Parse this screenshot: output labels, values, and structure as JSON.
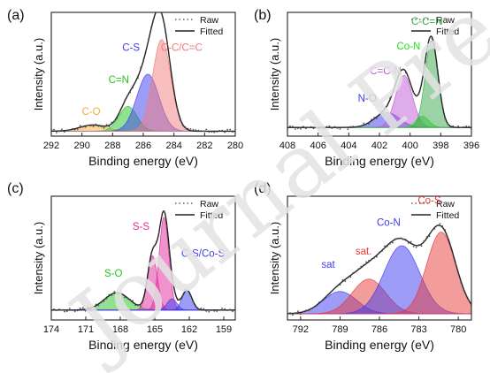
{
  "watermark": "Journal Pre-proof",
  "chart_data": [
    {
      "type": "area",
      "panel": "(a)",
      "xlabel": "Binding energy (eV)",
      "ylabel": "Intensity (a.u.)",
      "xlim": [
        292,
        280
      ],
      "x_reversed": true,
      "xticks": [
        292,
        290,
        288,
        286,
        284,
        282,
        280
      ],
      "y_ticks_shown": false,
      "legend": {
        "position": "top-right",
        "entries": [
          "Raw",
          "Fitted"
        ]
      },
      "series": [
        {
          "name": "C-O",
          "type": "gaussian",
          "center": 289.3,
          "height": 0.05,
          "fwhm": 2.0,
          "color": "#f4a93a"
        },
        {
          "name": "C=N",
          "type": "gaussian",
          "center": 287.0,
          "height": 0.2,
          "fwhm": 1.4,
          "color": "#22c522"
        },
        {
          "name": "C-S",
          "type": "gaussian",
          "center": 285.7,
          "height": 0.46,
          "fwhm": 1.7,
          "color": "#3b3bf0"
        },
        {
          "name": "C-C/C=C",
          "type": "gaussian",
          "center": 284.8,
          "height": 0.74,
          "fwhm": 1.4,
          "color": "#f27b7b"
        }
      ],
      "baseline": 0.04,
      "annotations": [
        {
          "text": "C-O",
          "x": 289.4,
          "y": 0.17
        },
        {
          "text": "C=N",
          "x": 287.6,
          "y": 0.43
        },
        {
          "text": "C-S",
          "x": 286.8,
          "y": 0.69
        },
        {
          "text": "C-C/C=C",
          "x": 283.5,
          "y": 0.69
        }
      ]
    },
    {
      "type": "area",
      "panel": "(b)",
      "xlabel": "Binding energy (eV)",
      "ylabel": "Intensity (a.u.)",
      "xlim": [
        408,
        396
      ],
      "x_reversed": true,
      "xticks": [
        408,
        406,
        404,
        402,
        400,
        398,
        396
      ],
      "y_ticks_shown": false,
      "legend": {
        "position": "top-right",
        "entries": [
          "Raw",
          "Fitted"
        ]
      },
      "series": [
        {
          "name": "N-O",
          "type": "gaussian",
          "center": 401.5,
          "height": 0.12,
          "fwhm": 1.9,
          "color": "#3b3bf0"
        },
        {
          "name": "C=C-N",
          "type": "gaussian",
          "center": 400.4,
          "height": 0.42,
          "fwhm": 1.3,
          "color": "#c05ad6"
        },
        {
          "name": "Co-N",
          "type": "gaussian",
          "center": 399.2,
          "height": 0.09,
          "fwhm": 1.0,
          "color": "#22e022"
        },
        {
          "name": "C-C=N",
          "type": "gaussian",
          "center": 398.6,
          "height": 0.7,
          "fwhm": 1.0,
          "color": "#3aa84a"
        }
      ],
      "baseline": 0.07,
      "annotations": [
        {
          "text": "N-O",
          "x": 402.8,
          "y": 0.28
        },
        {
          "text": "C=C-N",
          "x": 401.6,
          "y": 0.5
        },
        {
          "text": "Co-N",
          "x": 400.1,
          "y": 0.7
        },
        {
          "text": "C-C=N",
          "x": 398.9,
          "y": 0.9
        }
      ]
    },
    {
      "type": "area",
      "panel": "(c)",
      "xlabel": "Binding energy (eV)",
      "ylabel": "Intensity (a.u.)",
      "xlim": [
        174,
        158
      ],
      "x_reversed": true,
      "xticks": [
        174,
        171,
        168,
        165,
        162,
        159
      ],
      "y_ticks_shown": false,
      "legend": {
        "position": "top-right",
        "entries": [
          "Raw",
          "Fitted"
        ]
      },
      "series": [
        {
          "name": "S-O",
          "type": "gaussian",
          "center": 168.3,
          "height": 0.14,
          "fwhm": 2.6,
          "color": "#22c522"
        },
        {
          "name": "S-S",
          "type": "gaussian",
          "center": 165.2,
          "height": 0.44,
          "fwhm": 1.0,
          "color": "#e0289a"
        },
        {
          "name": "S-S",
          "type": "gaussian",
          "center": 164.2,
          "height": 0.75,
          "fwhm": 1.0,
          "color": "#e0289a"
        },
        {
          "name": "C-S/Co-S",
          "type": "gaussian",
          "center": 163.5,
          "height": 0.09,
          "fwhm": 1.0,
          "color": "#3b3bf0"
        },
        {
          "name": "C-S/Co-S",
          "type": "gaussian",
          "center": 162.2,
          "height": 0.16,
          "fwhm": 1.0,
          "color": "#3b3bf0"
        }
      ],
      "baseline": 0.08,
      "annotations": [
        {
          "text": "S-O",
          "x": 168.6,
          "y": 0.35
        },
        {
          "text": "S-S",
          "x": 166.2,
          "y": 0.73
        },
        {
          "text": "C-S/Co-S",
          "x": 160.8,
          "y": 0.51
        }
      ]
    },
    {
      "type": "area",
      "panel": "(d)",
      "xlabel": "Binding energy (eV)",
      "ylabel": "Intensity (a.u.)",
      "xlim": [
        793,
        779
      ],
      "x_reversed": true,
      "xticks": [
        792,
        789,
        786,
        783,
        780
      ],
      "y_ticks_shown": false,
      "legend": {
        "position": "top-right",
        "entries": [
          "Raw",
          "Fitted"
        ]
      },
      "series": [
        {
          "name": "sat",
          "type": "gaussian",
          "center": 789.0,
          "height": 0.18,
          "fwhm": 3.0,
          "color": "#3b3bf0"
        },
        {
          "name": "sat.",
          "type": "gaussian",
          "center": 786.8,
          "height": 0.28,
          "fwhm": 3.0,
          "color": "#e83a3a"
        },
        {
          "name": "Co-N",
          "type": "gaussian",
          "center": 784.3,
          "height": 0.55,
          "fwhm": 3.2,
          "color": "#3b3bf0"
        },
        {
          "name": "Co-S",
          "type": "gaussian",
          "center": 781.3,
          "height": 0.66,
          "fwhm": 2.6,
          "color": "#e83a3a"
        }
      ],
      "baseline": 0.05,
      "annotations": [
        {
          "text": "sat",
          "x": 789.9,
          "y": 0.42
        },
        {
          "text": "sat.",
          "x": 787.2,
          "y": 0.53
        },
        {
          "text": "Co-N",
          "x": 785.3,
          "y": 0.76
        },
        {
          "text": "Co-S",
          "x": 782.2,
          "y": 0.94
        }
      ]
    }
  ]
}
